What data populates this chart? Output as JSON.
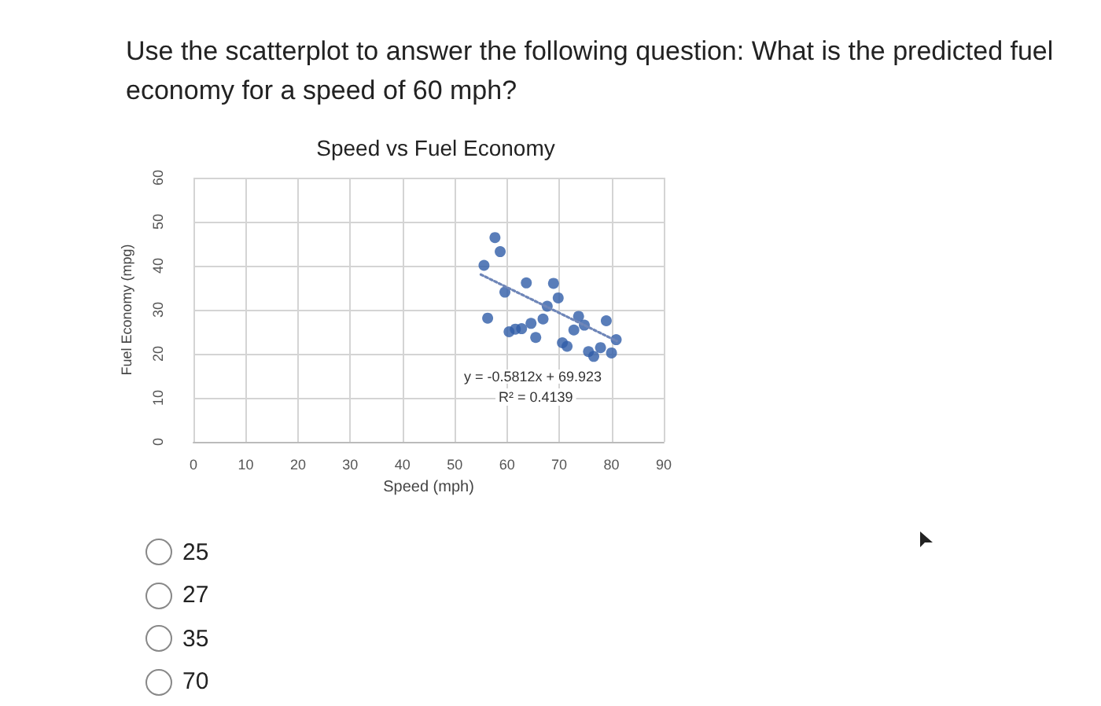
{
  "chart_data": {
    "type": "scatter",
    "title": "Speed vs Fuel Economy",
    "xlabel": "Speed (mph)",
    "ylabel": "Fuel Economy (mpg)",
    "annotations": [
      "Use the scatterplot to answer the following question: What is the predicted fuel economy for a speed of 60 mph?",
      "y = -0.5812x + 69.923",
      "R² = 0.4139",
      "25",
      "27",
      "35",
      "70"
    ],
    "xlim": [
      0,
      90
    ],
    "xticks": [
      0,
      10,
      20,
      30,
      40,
      50,
      60,
      70,
      80,
      90
    ],
    "ylim": [
      0,
      60
    ],
    "yticks": [
      0,
      10,
      20,
      30,
      40,
      50,
      60
    ],
    "grid": true,
    "marker": "circle",
    "series": [
      {
        "color": "#2f5ca8",
        "x": [
          55.6,
          57.7,
          58.7,
          56.3,
          59.6,
          60.4,
          61.6,
          62.8,
          64.6,
          63.7,
          65.5,
          66.9,
          67.7,
          68.9,
          69.8,
          70.6,
          71.5,
          72.8,
          73.7,
          74.8,
          75.6,
          76.6,
          77.9,
          79.0,
          80.0,
          80.9
        ],
        "values": [
          40.1,
          46.4,
          43.2,
          28.1,
          34.0,
          25.0,
          25.6,
          25.7,
          26.9,
          36.1,
          23.7,
          27.9,
          30.8,
          36.0,
          32.7,
          22.5,
          21.7,
          25.4,
          28.5,
          26.5,
          20.5,
          19.4,
          21.4,
          27.5,
          20.2,
          23.2
        ]
      },
      {
        "type": "line",
        "color": "#6f86b8",
        "line_style": "dotted",
        "marker": "none",
        "x": [
          55,
          81
        ],
        "values": [
          38.0,
          22.9
        ]
      }
    ]
  }
}
